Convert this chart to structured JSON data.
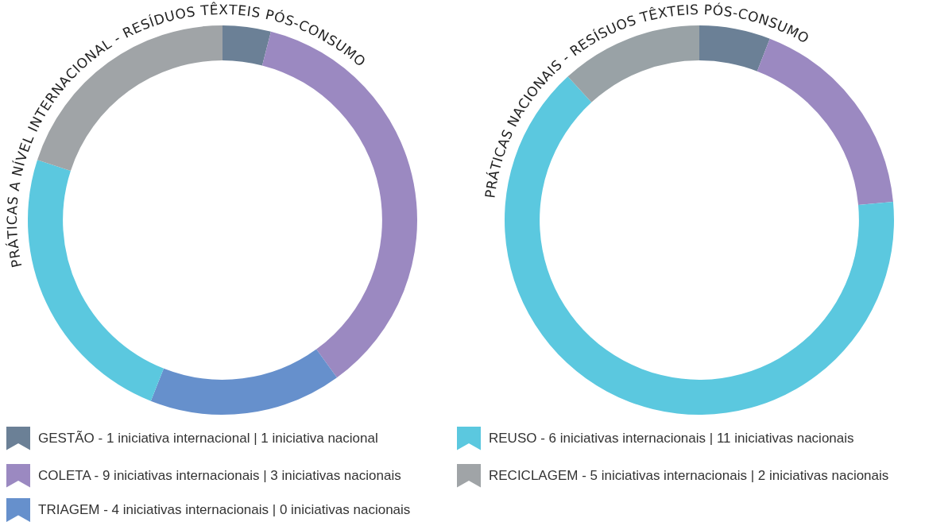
{
  "chart_data": [
    {
      "type": "donut",
      "title": "PRÁTICAS A NÍVEL INTERNACIONAL - RESÍDUOS TÊXTEIS PÓS-CONSUMO",
      "categories": [
        "GESTÃO - 1 iniciativa internacional | 1 iniciativa nacional",
        "COLETA - 9 iniciativas internacionais | 3 iniciativas nacionais",
        "TRIAGEM - 4 iniciativas internacionais | 0 iniciativas nacionais",
        "REUSO - 6 iniciativas internacionais | 11 iniciativas nacionais",
        "RECICLAGEM - 5 iniciativas internacionais | 2 iniciativas nacionais"
      ],
      "values": [
        1,
        9,
        4,
        6,
        5
      ],
      "colors": [
        "#6b8096",
        "#9b89c1",
        "#6690cc",
        "#5bc8df",
        "#a0a4a7"
      ],
      "legend": "bottom"
    },
    {
      "type": "donut",
      "title": "PRÁTICAS NACIONAIS - RESÍSUOS TÊXTEIS PÓS-CONSUMO",
      "categories": [
        null,
        null,
        null,
        null,
        null
      ],
      "values": [
        5.9,
        17.6,
        0,
        64.7,
        11.8
      ],
      "colors": [
        "#6b8096",
        "#9b89c1",
        "#6690cc",
        "#5bc8df",
        "#99a2a6"
      ]
    }
  ]
}
